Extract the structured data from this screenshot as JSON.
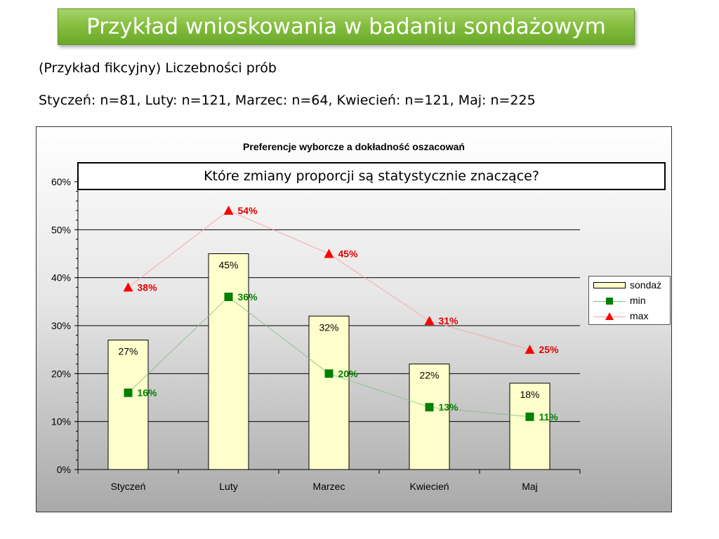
{
  "slide": {
    "title": "Przykład wnioskowania w badaniu sondażowym",
    "subtitle": "(Przykład fikcyjny) Liczebności prób",
    "sample_sizes": "Styczeń: n=81, Luty: n=121, Marzec: n=64, Kwiecień: n=121, Maj: n=225"
  },
  "question": "Które zmiany proporcji są statystycznie znaczące?",
  "colors": {
    "bar_fill": "#ffffcc",
    "min_color": "#008000",
    "max_color": "#ff0000",
    "min_label": "#008000",
    "max_label": "#e00000"
  },
  "chart_data": {
    "type": "bar",
    "title": "Preferencje wyborcze a dokładność oszacowań",
    "categories": [
      "Styczeń",
      "Luty",
      "Marzec",
      "Kwiecień",
      "Maj"
    ],
    "ylim": [
      0,
      0.6
    ],
    "yticks": [
      "0%",
      "10%",
      "20%",
      "30%",
      "40%",
      "50%",
      "60%"
    ],
    "grid": true,
    "legend_position": "right",
    "series": [
      {
        "name": "sondaż",
        "kind": "bar",
        "values": [
          0.27,
          0.45,
          0.32,
          0.22,
          0.18
        ],
        "labels": [
          "27%",
          "45%",
          "32%",
          "22%",
          "18%"
        ]
      },
      {
        "name": "min",
        "kind": "line-square",
        "values": [
          0.16,
          0.36,
          0.2,
          0.13,
          0.11
        ],
        "labels": [
          "16%",
          "36%",
          "20%",
          "13%",
          "11%"
        ]
      },
      {
        "name": "max",
        "kind": "line-triangle",
        "values": [
          0.38,
          0.54,
          0.45,
          0.31,
          0.25
        ],
        "labels": [
          "38%",
          "54%",
          "45%",
          "31%",
          "25%"
        ]
      }
    ]
  }
}
